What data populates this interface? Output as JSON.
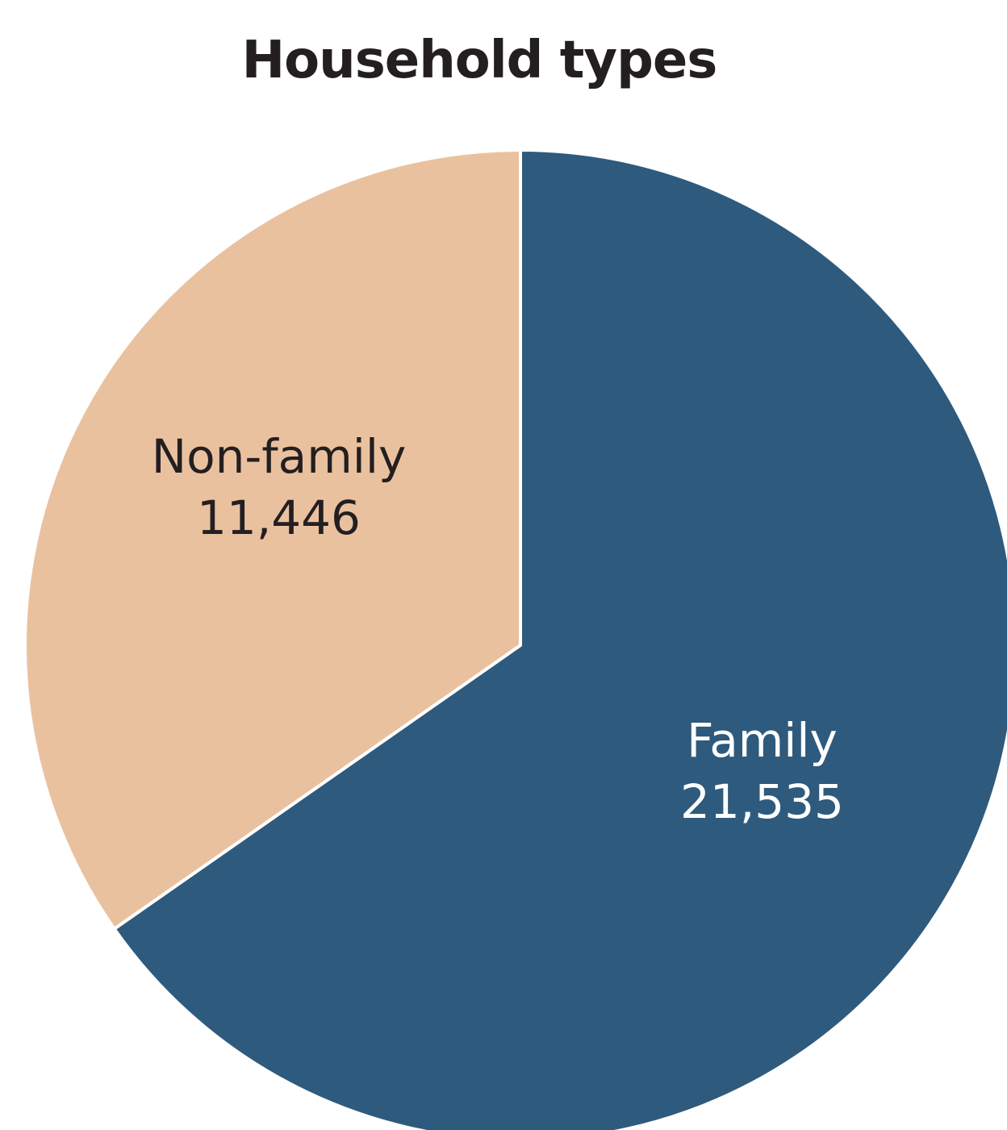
{
  "chart_data": {
    "type": "pie",
    "title": "Household types",
    "start_angle_deg": 0,
    "direction": "clockwise",
    "slices": [
      {
        "label": "Family",
        "value": 21535,
        "value_text": "21,535",
        "color": "#2e5a7d",
        "text_color": "#ffffff"
      },
      {
        "label": "Non-family",
        "value": 11446,
        "value_text": "11,446",
        "color": "#eac19f",
        "text_color": "#231f20"
      }
    ]
  }
}
